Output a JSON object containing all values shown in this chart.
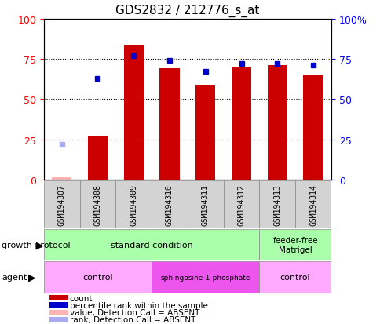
{
  "title": "GDS2832 / 212776_s_at",
  "samples": [
    "GSM194307",
    "GSM194308",
    "GSM194309",
    "GSM194310",
    "GSM194311",
    "GSM194312",
    "GSM194313",
    "GSM194314"
  ],
  "count_values": [
    2,
    27,
    84,
    69,
    59,
    70,
    71,
    65
  ],
  "rank_values": [
    22,
    63,
    77,
    74,
    67,
    72,
    72,
    71
  ],
  "count_absent": [
    true,
    false,
    false,
    false,
    false,
    false,
    false,
    false
  ],
  "rank_absent": [
    true,
    false,
    false,
    false,
    false,
    false,
    false,
    false
  ],
  "ylim_left": [
    0,
    100
  ],
  "ylim_right": [
    0,
    100
  ],
  "bar_color": "#cc0000",
  "bar_absent_color": "#ffb3b3",
  "rank_color": "#0000cc",
  "rank_absent_color": "#aaaaee",
  "grid_lines": [
    25,
    50,
    75
  ],
  "right_ytick_labels": [
    "0",
    "25",
    "50",
    "75",
    "100%"
  ],
  "left_ytick_labels": [
    "0",
    "25",
    "50",
    "75",
    "100"
  ],
  "legend_items": [
    {
      "label": "count",
      "color": "#cc0000"
    },
    {
      "label": "percentile rank within the sample",
      "color": "#0000cc"
    },
    {
      "label": "value, Detection Call = ABSENT",
      "color": "#ffb3b3"
    },
    {
      "label": "rank, Detection Call = ABSENT",
      "color": "#aaaaee"
    }
  ],
  "growth_std_label": "standard condition",
  "growth_ff_label": "feeder-free\nMatrigel",
  "growth_color": "#aaffaa",
  "agent_ctrl_label": "control",
  "agent_sphingo_label": "sphingosine-1-phosphate",
  "agent_ctrl_color": "#ffaaff",
  "agent_sphingo_color": "#ee55ee",
  "sample_box_color": "#d3d3d3",
  "growth_protocol_text": "growth protocol",
  "agent_text": "agent"
}
